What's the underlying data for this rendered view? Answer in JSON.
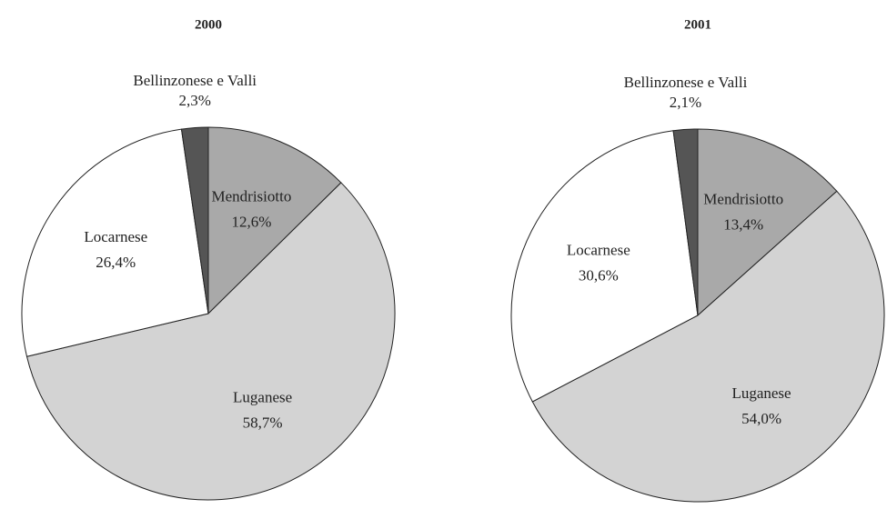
{
  "chart_data": [
    {
      "type": "pie",
      "title": "2000",
      "categories": [
        "Mendrisiotto",
        "Luganese",
        "Locarnese",
        "Bellinzonese e Valli"
      ],
      "values": [
        12.6,
        58.7,
        26.4,
        2.3
      ],
      "value_labels": [
        "12,6%",
        "58,7%",
        "26,4%",
        "2,3%"
      ],
      "colors": [
        "#a9a9a9",
        "#d3d3d3",
        "#ffffff",
        "#555555"
      ]
    },
    {
      "type": "pie",
      "title": "2001",
      "categories": [
        "Mendrisiotto",
        "Luganese",
        "Locarnese",
        "Bellinzonese e Valli"
      ],
      "values": [
        13.4,
        54.0,
        30.6,
        2.1
      ],
      "value_labels": [
        "13,4%",
        "54,0%",
        "30,6%",
        "2,1%"
      ],
      "colors": [
        "#a9a9a9",
        "#d3d3d3",
        "#ffffff",
        "#555555"
      ]
    }
  ]
}
